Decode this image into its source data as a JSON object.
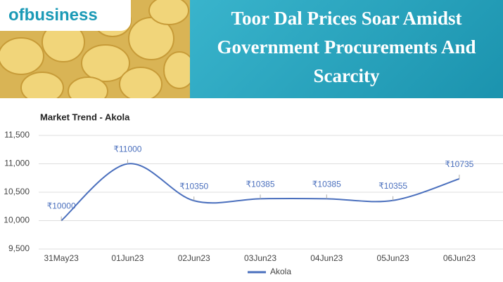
{
  "banner": {
    "logo": "ofbusiness",
    "headline": "Toor Dal Prices Soar Amidst Government Procurements And Scarcity"
  },
  "chart_data": {
    "type": "line",
    "title": "Market Trend - Akola",
    "categories": [
      "31May23",
      "01Jun23",
      "02Jun23",
      "03Jun23",
      "04Jun23",
      "05Jun23",
      "06Jun23"
    ],
    "series": [
      {
        "name": "Akola",
        "color": "#4a6fbd",
        "values": [
          10000,
          11000,
          10350,
          10385,
          10385,
          10355,
          10735
        ],
        "value_labels": [
          "₹10000",
          "₹11000",
          "₹10350",
          "₹10385",
          "₹10385",
          "₹10355",
          "₹10735"
        ]
      }
    ],
    "ylim": [
      9500,
      11500
    ],
    "yticks": [
      {
        "value": 9500,
        "label": "9,500"
      },
      {
        "value": 10000,
        "label": "10,000"
      },
      {
        "value": 10500,
        "label": "10,500"
      },
      {
        "value": 11000,
        "label": "11,000"
      },
      {
        "value": 11500,
        "label": "11,500"
      }
    ],
    "grid": true,
    "legend": "bottom"
  }
}
